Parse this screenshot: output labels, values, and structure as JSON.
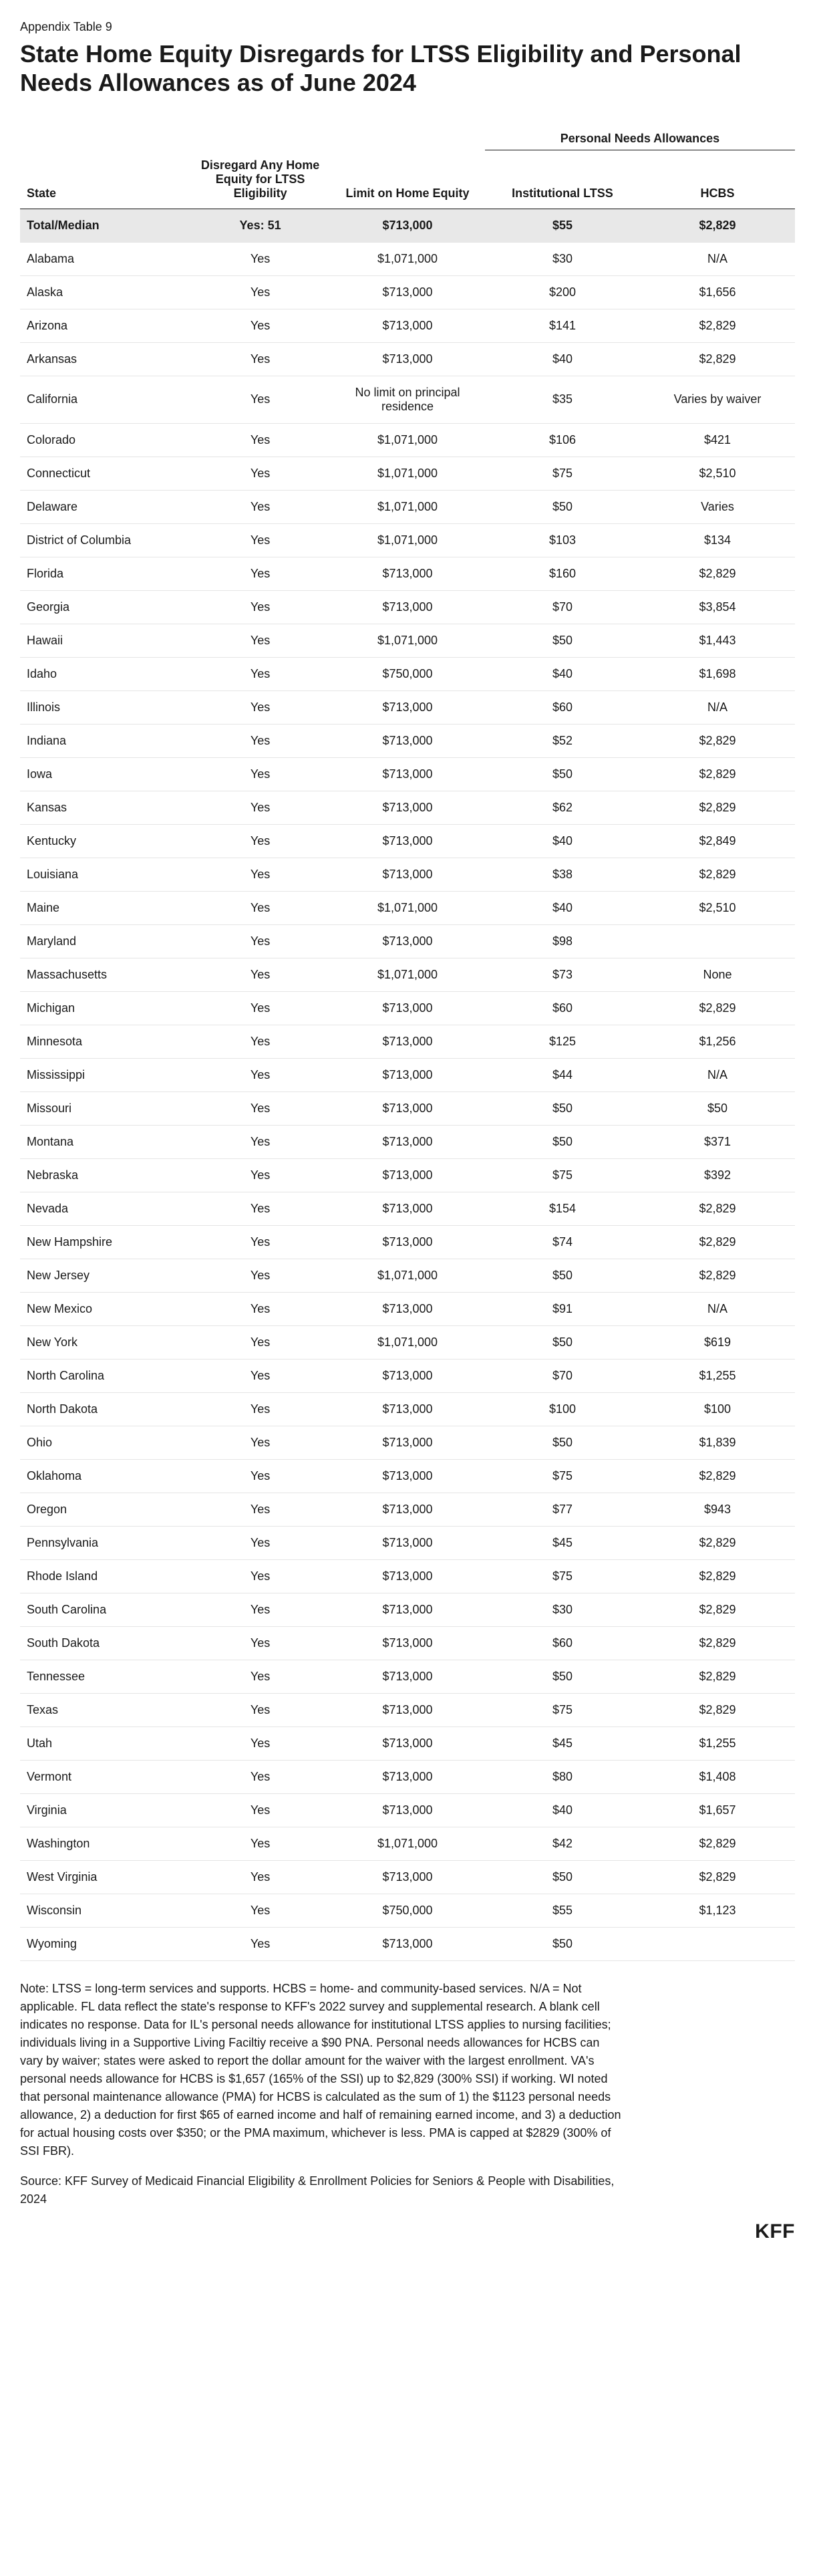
{
  "pretitle": "Appendix Table 9",
  "title": "State Home Equity Disregards for LTSS Eligibility and Personal Needs Allowances as of June 2024",
  "table": {
    "super_header_pna": "Personal Needs Allowances",
    "columns": {
      "state": "State",
      "disregard": "Disregard Any Home Equity for LTSS Eligibility",
      "limit": "Limit on Home Equity",
      "institutional": "Institutional LTSS",
      "hcbs": "HCBS"
    },
    "total_row": {
      "state": "Total/Median",
      "disregard": "Yes: 51",
      "limit": "$713,000",
      "institutional": "$55",
      "hcbs": "$2,829"
    },
    "rows": [
      {
        "state": "Alabama",
        "disregard": "Yes",
        "limit": "$1,071,000",
        "institutional": "$30",
        "hcbs": "N/A"
      },
      {
        "state": "Alaska",
        "disregard": "Yes",
        "limit": "$713,000",
        "institutional": "$200",
        "hcbs": "$1,656"
      },
      {
        "state": "Arizona",
        "disregard": "Yes",
        "limit": "$713,000",
        "institutional": "$141",
        "hcbs": "$2,829"
      },
      {
        "state": "Arkansas",
        "disregard": "Yes",
        "limit": "$713,000",
        "institutional": "$40",
        "hcbs": "$2,829"
      },
      {
        "state": "California",
        "disregard": "Yes",
        "limit": "No limit on principal residence",
        "institutional": "$35",
        "hcbs": "Varies by waiver"
      },
      {
        "state": "Colorado",
        "disregard": "Yes",
        "limit": "$1,071,000",
        "institutional": "$106",
        "hcbs": "$421"
      },
      {
        "state": "Connecticut",
        "disregard": "Yes",
        "limit": "$1,071,000",
        "institutional": "$75",
        "hcbs": "$2,510"
      },
      {
        "state": "Delaware",
        "disregard": "Yes",
        "limit": "$1,071,000",
        "institutional": "$50",
        "hcbs": "Varies"
      },
      {
        "state": "District of Columbia",
        "disregard": "Yes",
        "limit": "$1,071,000",
        "institutional": "$103",
        "hcbs": "$134"
      },
      {
        "state": "Florida",
        "disregard": "Yes",
        "limit": "$713,000",
        "institutional": "$160",
        "hcbs": "$2,829"
      },
      {
        "state": "Georgia",
        "disregard": "Yes",
        "limit": "$713,000",
        "institutional": "$70",
        "hcbs": "$3,854"
      },
      {
        "state": "Hawaii",
        "disregard": "Yes",
        "limit": "$1,071,000",
        "institutional": "$50",
        "hcbs": "$1,443"
      },
      {
        "state": "Idaho",
        "disregard": "Yes",
        "limit": "$750,000",
        "institutional": "$40",
        "hcbs": "$1,698"
      },
      {
        "state": "Illinois",
        "disregard": "Yes",
        "limit": "$713,000",
        "institutional": "$60",
        "hcbs": "N/A"
      },
      {
        "state": "Indiana",
        "disregard": "Yes",
        "limit": "$713,000",
        "institutional": "$52",
        "hcbs": "$2,829"
      },
      {
        "state": "Iowa",
        "disregard": "Yes",
        "limit": "$713,000",
        "institutional": "$50",
        "hcbs": "$2,829"
      },
      {
        "state": "Kansas",
        "disregard": "Yes",
        "limit": "$713,000",
        "institutional": "$62",
        "hcbs": "$2,829"
      },
      {
        "state": "Kentucky",
        "disregard": "Yes",
        "limit": "$713,000",
        "institutional": "$40",
        "hcbs": "$2,849"
      },
      {
        "state": "Louisiana",
        "disregard": "Yes",
        "limit": "$713,000",
        "institutional": "$38",
        "hcbs": "$2,829"
      },
      {
        "state": "Maine",
        "disregard": "Yes",
        "limit": "$1,071,000",
        "institutional": "$40",
        "hcbs": "$2,510"
      },
      {
        "state": "Maryland",
        "disregard": "Yes",
        "limit": "$713,000",
        "institutional": "$98",
        "hcbs": ""
      },
      {
        "state": "Massachusetts",
        "disregard": "Yes",
        "limit": "$1,071,000",
        "institutional": "$73",
        "hcbs": "None"
      },
      {
        "state": "Michigan",
        "disregard": "Yes",
        "limit": "$713,000",
        "institutional": "$60",
        "hcbs": "$2,829"
      },
      {
        "state": "Minnesota",
        "disregard": "Yes",
        "limit": "$713,000",
        "institutional": "$125",
        "hcbs": "$1,256"
      },
      {
        "state": "Mississippi",
        "disregard": "Yes",
        "limit": "$713,000",
        "institutional": "$44",
        "hcbs": "N/A"
      },
      {
        "state": "Missouri",
        "disregard": "Yes",
        "limit": "$713,000",
        "institutional": "$50",
        "hcbs": "$50"
      },
      {
        "state": "Montana",
        "disregard": "Yes",
        "limit": "$713,000",
        "institutional": "$50",
        "hcbs": "$371"
      },
      {
        "state": "Nebraska",
        "disregard": "Yes",
        "limit": "$713,000",
        "institutional": "$75",
        "hcbs": "$392"
      },
      {
        "state": "Nevada",
        "disregard": "Yes",
        "limit": "$713,000",
        "institutional": "$154",
        "hcbs": "$2,829"
      },
      {
        "state": "New Hampshire",
        "disregard": "Yes",
        "limit": "$713,000",
        "institutional": "$74",
        "hcbs": "$2,829"
      },
      {
        "state": "New Jersey",
        "disregard": "Yes",
        "limit": "$1,071,000",
        "institutional": "$50",
        "hcbs": "$2,829"
      },
      {
        "state": "New Mexico",
        "disregard": "Yes",
        "limit": "$713,000",
        "institutional": "$91",
        "hcbs": "N/A"
      },
      {
        "state": "New York",
        "disregard": "Yes",
        "limit": "$1,071,000",
        "institutional": "$50",
        "hcbs": "$619"
      },
      {
        "state": "North Carolina",
        "disregard": "Yes",
        "limit": "$713,000",
        "institutional": "$70",
        "hcbs": "$1,255"
      },
      {
        "state": "North Dakota",
        "disregard": "Yes",
        "limit": "$713,000",
        "institutional": "$100",
        "hcbs": "$100"
      },
      {
        "state": "Ohio",
        "disregard": "Yes",
        "limit": "$713,000",
        "institutional": "$50",
        "hcbs": "$1,839"
      },
      {
        "state": "Oklahoma",
        "disregard": "Yes",
        "limit": "$713,000",
        "institutional": "$75",
        "hcbs": "$2,829"
      },
      {
        "state": "Oregon",
        "disregard": "Yes",
        "limit": "$713,000",
        "institutional": "$77",
        "hcbs": "$943"
      },
      {
        "state": "Pennsylvania",
        "disregard": "Yes",
        "limit": "$713,000",
        "institutional": "$45",
        "hcbs": "$2,829"
      },
      {
        "state": "Rhode Island",
        "disregard": "Yes",
        "limit": "$713,000",
        "institutional": "$75",
        "hcbs": "$2,829"
      },
      {
        "state": "South Carolina",
        "disregard": "Yes",
        "limit": "$713,000",
        "institutional": "$30",
        "hcbs": "$2,829"
      },
      {
        "state": "South Dakota",
        "disregard": "Yes",
        "limit": "$713,000",
        "institutional": "$60",
        "hcbs": "$2,829"
      },
      {
        "state": "Tennessee",
        "disregard": "Yes",
        "limit": "$713,000",
        "institutional": "$50",
        "hcbs": "$2,829"
      },
      {
        "state": "Texas",
        "disregard": "Yes",
        "limit": "$713,000",
        "institutional": "$75",
        "hcbs": "$2,829"
      },
      {
        "state": "Utah",
        "disregard": "Yes",
        "limit": "$713,000",
        "institutional": "$45",
        "hcbs": "$1,255"
      },
      {
        "state": "Vermont",
        "disregard": "Yes",
        "limit": "$713,000",
        "institutional": "$80",
        "hcbs": "$1,408"
      },
      {
        "state": "Virginia",
        "disregard": "Yes",
        "limit": "$713,000",
        "institutional": "$40",
        "hcbs": "$1,657"
      },
      {
        "state": "Washington",
        "disregard": "Yes",
        "limit": "$1,071,000",
        "institutional": "$42",
        "hcbs": "$2,829"
      },
      {
        "state": "West Virginia",
        "disregard": "Yes",
        "limit": "$713,000",
        "institutional": "$50",
        "hcbs": "$2,829"
      },
      {
        "state": "Wisconsin",
        "disregard": "Yes",
        "limit": "$750,000",
        "institutional": "$55",
        "hcbs": "$1,123"
      },
      {
        "state": "Wyoming",
        "disregard": "Yes",
        "limit": "$713,000",
        "institutional": "$50",
        "hcbs": ""
      }
    ]
  },
  "note": "Note: LTSS = long-term services and supports. HCBS = home- and community-based services. N/A = Not applicable. FL data reflect the state's response to KFF's 2022 survey and supplemental research. A blank cell indicates no response. Data for IL's personal needs allowance for institutional LTSS applies to nursing facilities; individuals living in a Supportive Living Faciltiy receive a $90 PNA. Personal needs allowances for HCBS can vary by waiver; states were asked to report the dollar amount for the waiver with the largest enrollment. VA's personal needs allowance for HCBS is $1,657 (165% of the SSI) up to $2,829 (300% SSI) if working. WI noted that personal maintenance allowance (PMA) for HCBS is calculated as the sum of 1) the $1123 personal needs allowance, 2) a deduction for first $65 of earned income and half of remaining earned income, and 3) a deduction for actual housing costs over $350; or the PMA maximum, whichever is less. PMA is capped at $2829 (300% of SSI FBR).",
  "source": "Source: KFF Survey of Medicaid Financial Eligibility & Enrollment Policies for Seniors & People with Disabilities, 2024",
  "logo": "KFF"
}
